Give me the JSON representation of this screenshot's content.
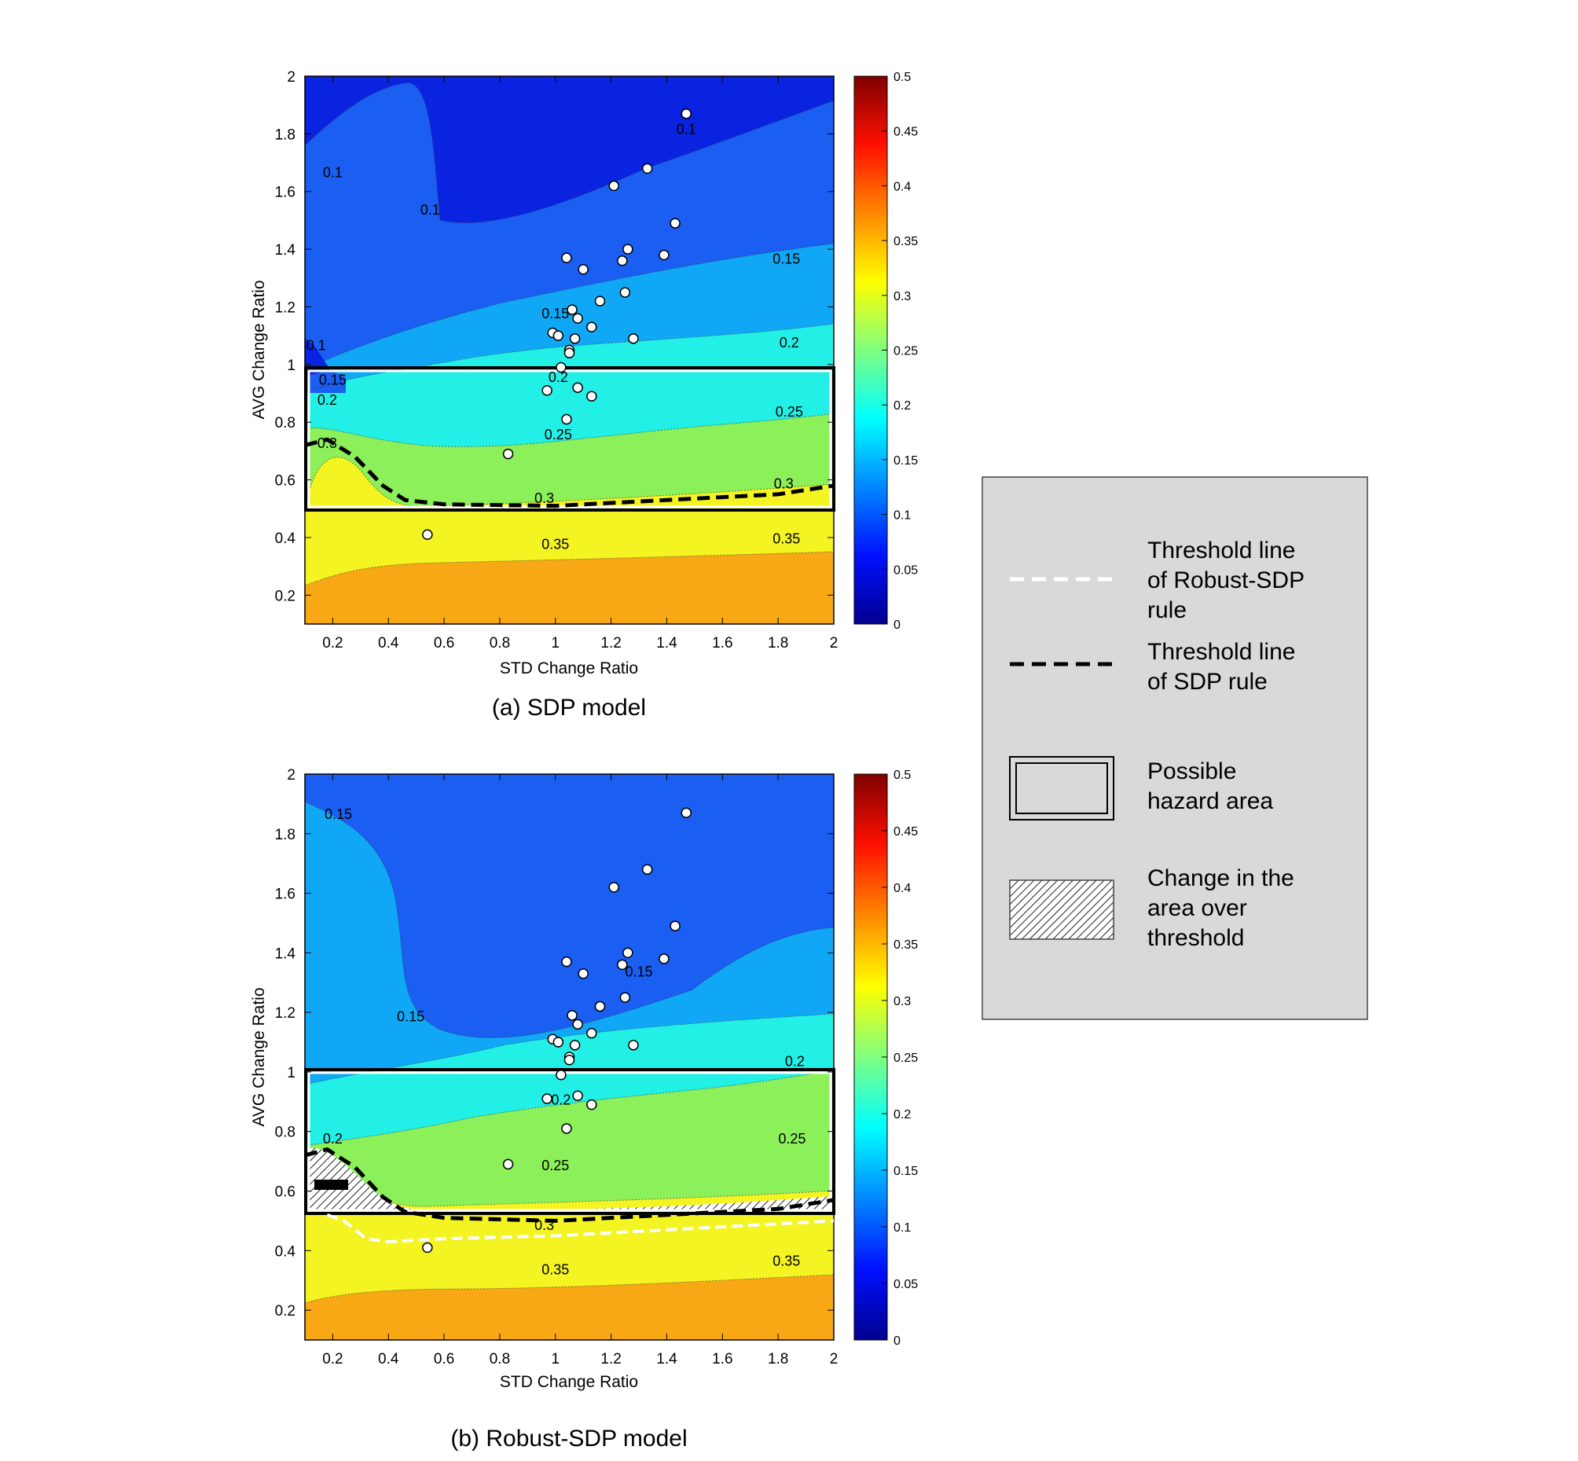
{
  "chart_data": [
    {
      "type": "contour",
      "caption": "(a) SDP model",
      "xlabel": "STD Change Ratio",
      "ylabel": "AVG Change Ratio",
      "xlim": [
        0.1,
        2
      ],
      "ylim": [
        0.1,
        2
      ],
      "xticks": [
        "0.2",
        "0.4",
        "0.6",
        "0.8",
        "1",
        "1.2",
        "1.4",
        "1.6",
        "1.8",
        "2"
      ],
      "yticks": [
        "0.2",
        "0.4",
        "0.6",
        "0.8",
        "1",
        "1.2",
        "1.4",
        "1.6",
        "1.8",
        "2"
      ],
      "colorbar": {
        "range": [
          0,
          0.5
        ],
        "ticks": [
          "0",
          "0.05",
          "0.1",
          "0.15",
          "0.2",
          "0.25",
          "0.3",
          "0.35",
          "0.4",
          "0.45",
          "0.5"
        ]
      },
      "contour_levels": [
        0.1,
        0.15,
        0.2,
        0.25,
        0.3,
        0.35
      ],
      "contour_labels": [
        {
          "text": "0.1",
          "x": 0.2,
          "y": 1.65
        },
        {
          "text": "0.1",
          "x": 0.55,
          "y": 1.52
        },
        {
          "text": "0.1",
          "x": 1.47,
          "y": 1.8
        },
        {
          "text": "0.15",
          "x": 1.83,
          "y": 1.35
        },
        {
          "text": "0.15",
          "x": 1.0,
          "y": 1.16
        },
        {
          "text": "0.2",
          "x": 1.84,
          "y": 1.06
        },
        {
          "text": "0.1",
          "x": 0.14,
          "y": 1.05
        },
        {
          "text": "0.15",
          "x": 0.2,
          "y": 0.93
        },
        {
          "text": "0.2",
          "x": 0.18,
          "y": 0.86
        },
        {
          "text": "0.2",
          "x": 1.01,
          "y": 0.94
        },
        {
          "text": "0.25",
          "x": 1.01,
          "y": 0.74
        },
        {
          "text": "0.25",
          "x": 1.84,
          "y": 0.82
        },
        {
          "text": "0.3",
          "x": 0.18,
          "y": 0.71
        },
        {
          "text": "0.3",
          "x": 0.96,
          "y": 0.52
        },
        {
          "text": "0.3",
          "x": 1.82,
          "y": 0.57
        },
        {
          "text": "0.35",
          "x": 1.0,
          "y": 0.36
        },
        {
          "text": "0.35",
          "x": 1.83,
          "y": 0.38
        }
      ],
      "points": [
        {
          "x": 1.47,
          "y": 1.87
        },
        {
          "x": 1.33,
          "y": 1.68
        },
        {
          "x": 1.21,
          "y": 1.62
        },
        {
          "x": 1.43,
          "y": 1.49
        },
        {
          "x": 1.26,
          "y": 1.4
        },
        {
          "x": 1.39,
          "y": 1.38
        },
        {
          "x": 1.24,
          "y": 1.36
        },
        {
          "x": 1.04,
          "y": 1.37
        },
        {
          "x": 1.1,
          "y": 1.33
        },
        {
          "x": 1.25,
          "y": 1.25
        },
        {
          "x": 1.16,
          "y": 1.22
        },
        {
          "x": 1.06,
          "y": 1.19
        },
        {
          "x": 1.08,
          "y": 1.16
        },
        {
          "x": 1.13,
          "y": 1.13
        },
        {
          "x": 0.99,
          "y": 1.11
        },
        {
          "x": 1.01,
          "y": 1.1
        },
        {
          "x": 1.07,
          "y": 1.09
        },
        {
          "x": 1.28,
          "y": 1.09
        },
        {
          "x": 1.05,
          "y": 1.05
        },
        {
          "x": 1.05,
          "y": 1.04
        },
        {
          "x": 1.02,
          "y": 0.99
        },
        {
          "x": 0.97,
          "y": 0.91
        },
        {
          "x": 1.08,
          "y": 0.92
        },
        {
          "x": 1.13,
          "y": 0.89
        },
        {
          "x": 1.04,
          "y": 0.81
        },
        {
          "x": 0.83,
          "y": 0.69
        },
        {
          "x": 0.54,
          "y": 0.41
        }
      ],
      "hazard_area": {
        "x": [
          0.1,
          2
        ],
        "y": [
          0.5,
          1
        ]
      },
      "threshold_sdp": [
        [
          0.1,
          0.72
        ],
        [
          0.18,
          0.74
        ],
        [
          0.28,
          0.68
        ],
        [
          0.38,
          0.58
        ],
        [
          0.46,
          0.53
        ],
        [
          0.6,
          0.515
        ],
        [
          1.0,
          0.51
        ],
        [
          1.4,
          0.53
        ],
        [
          1.8,
          0.55
        ],
        [
          2.0,
          0.58
        ]
      ]
    },
    {
      "type": "contour",
      "caption": "(b) Robust-SDP model",
      "xlabel": "STD Change Ratio",
      "ylabel": "AVG Change Ratio",
      "xlim": [
        0.1,
        2
      ],
      "ylim": [
        0.1,
        2
      ],
      "xticks": [
        "0.2",
        "0.4",
        "0.6",
        "0.8",
        "1",
        "1.2",
        "1.4",
        "1.6",
        "1.8",
        "2"
      ],
      "yticks": [
        "0.2",
        "0.4",
        "0.6",
        "0.8",
        "1",
        "1.2",
        "1.4",
        "1.6",
        "1.8",
        "2"
      ],
      "colorbar": {
        "range": [
          0,
          0.5
        ],
        "ticks": [
          "0",
          "0.05",
          "0.1",
          "0.15",
          "0.2",
          "0.25",
          "0.3",
          "0.35",
          "0.4",
          "0.45",
          "0.5"
        ]
      },
      "contour_levels": [
        0.15,
        0.2,
        0.25,
        0.3,
        0.35
      ],
      "contour_labels": [
        {
          "text": "0.15",
          "x": 0.22,
          "y": 1.85
        },
        {
          "text": "0.15",
          "x": 0.48,
          "y": 1.17
        },
        {
          "text": "0.15",
          "x": 1.3,
          "y": 1.32
        },
        {
          "text": "0.2",
          "x": 1.86,
          "y": 1.02
        },
        {
          "text": "0.2",
          "x": 0.2,
          "y": 0.76
        },
        {
          "text": "0.2",
          "x": 1.02,
          "y": 0.89
        },
        {
          "text": "0.25",
          "x": 1.0,
          "y": 0.67
        },
        {
          "text": "0.25",
          "x": 1.85,
          "y": 0.76
        },
        {
          "text": "0.3",
          "x": 0.96,
          "y": 0.47
        },
        {
          "text": "0.35",
          "x": 1.0,
          "y": 0.32
        },
        {
          "text": "0.35",
          "x": 1.83,
          "y": 0.35
        }
      ],
      "points": [
        {
          "x": 1.47,
          "y": 1.87
        },
        {
          "x": 1.33,
          "y": 1.68
        },
        {
          "x": 1.21,
          "y": 1.62
        },
        {
          "x": 1.43,
          "y": 1.49
        },
        {
          "x": 1.26,
          "y": 1.4
        },
        {
          "x": 1.39,
          "y": 1.38
        },
        {
          "x": 1.24,
          "y": 1.36
        },
        {
          "x": 1.04,
          "y": 1.37
        },
        {
          "x": 1.1,
          "y": 1.33
        },
        {
          "x": 1.25,
          "y": 1.25
        },
        {
          "x": 1.16,
          "y": 1.22
        },
        {
          "x": 1.06,
          "y": 1.19
        },
        {
          "x": 1.08,
          "y": 1.16
        },
        {
          "x": 1.13,
          "y": 1.13
        },
        {
          "x": 0.99,
          "y": 1.11
        },
        {
          "x": 1.01,
          "y": 1.1
        },
        {
          "x": 1.07,
          "y": 1.09
        },
        {
          "x": 1.28,
          "y": 1.09
        },
        {
          "x": 1.05,
          "y": 1.05
        },
        {
          "x": 1.05,
          "y": 1.04
        },
        {
          "x": 1.02,
          "y": 0.99
        },
        {
          "x": 0.97,
          "y": 0.91
        },
        {
          "x": 1.08,
          "y": 0.92
        },
        {
          "x": 1.13,
          "y": 0.89
        },
        {
          "x": 1.04,
          "y": 0.81
        },
        {
          "x": 0.83,
          "y": 0.69
        },
        {
          "x": 0.54,
          "y": 0.41
        }
      ],
      "hazard_area": {
        "x": [
          0.1,
          2
        ],
        "y": [
          0.5,
          1
        ]
      },
      "threshold_sdp": [
        [
          0.1,
          0.72
        ],
        [
          0.18,
          0.74
        ],
        [
          0.28,
          0.68
        ],
        [
          0.38,
          0.58
        ],
        [
          0.46,
          0.53
        ],
        [
          0.6,
          0.51
        ],
        [
          1.0,
          0.5
        ],
        [
          1.4,
          0.52
        ],
        [
          1.8,
          0.54
        ],
        [
          2.0,
          0.57
        ]
      ],
      "threshold_robust": [
        [
          0.18,
          0.52
        ],
        [
          0.24,
          0.5
        ],
        [
          0.32,
          0.44
        ],
        [
          0.4,
          0.43
        ],
        [
          0.6,
          0.44
        ],
        [
          1.0,
          0.45
        ],
        [
          1.4,
          0.47
        ],
        [
          1.8,
          0.49
        ],
        [
          2.0,
          0.5
        ]
      ]
    }
  ],
  "legend": {
    "items": [
      {
        "lines": [
          "Threshold line",
          "of Robust-SDP",
          "rule"
        ],
        "symbol": "white-dashed-line"
      },
      {
        "lines": [
          "Threshold line",
          "of SDP rule"
        ],
        "symbol": "black-dashed-line"
      },
      {
        "lines": [
          "Possible",
          "hazard area"
        ],
        "symbol": "double-border-box"
      },
      {
        "lines": [
          "Change in the",
          "area over",
          "threshold"
        ],
        "symbol": "hatched-box"
      }
    ]
  },
  "colors": {
    "deep_blue": "#0a23e0",
    "blue": "#1a5ef2",
    "sky": "#10a8f6",
    "cyan": "#22f0e6",
    "green": "#8cf05a",
    "yellow": "#f4f422",
    "orange": "#f7a814",
    "legend_bg": "#d9d9d9"
  }
}
